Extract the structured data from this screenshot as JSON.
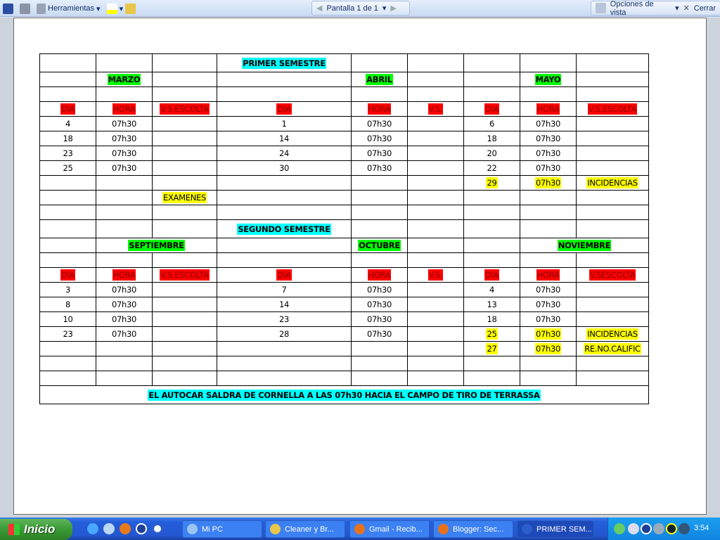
{
  "toolbar": {
    "tools_label": "Herramientas",
    "page_indicator": "Pantalla 1 de 1",
    "view_options_label": "Opciones de vista",
    "close_label": "Cerrar"
  },
  "table": {
    "rows": [
      [
        {
          "t": ""
        },
        {
          "t": ""
        },
        {
          "t": ""
        },
        {
          "t": "PRIMER SEMESTRE",
          "c": "cyan"
        },
        {
          "t": ""
        },
        {
          "t": ""
        },
        {
          "t": ""
        },
        {
          "t": ""
        },
        {
          "t": ""
        }
      ],
      [
        {
          "t": ""
        },
        {
          "t": "MARZO",
          "c": "green"
        },
        {
          "t": ""
        },
        {
          "t": ""
        },
        {
          "t": "ABRIL",
          "c": "green"
        },
        {
          "t": ""
        },
        {
          "t": ""
        },
        {
          "t": "MAYO",
          "c": "green"
        },
        {
          "t": ""
        }
      ],
      [
        {
          "t": ""
        },
        {
          "t": ""
        },
        {
          "t": ""
        },
        {
          "t": ""
        },
        {
          "t": ""
        },
        {
          "t": ""
        },
        {
          "t": ""
        },
        {
          "t": ""
        },
        {
          "t": ""
        }
      ],
      [
        {
          "t": "DIA",
          "c": "red"
        },
        {
          "t": "HORA",
          "c": "red"
        },
        {
          "t": "V.S.ESCOLTA",
          "c": "red"
        },
        {
          "t": "DIA",
          "c": "red"
        },
        {
          "t": "HORA",
          "c": "red"
        },
        {
          "t": "V.S.",
          "c": "red"
        },
        {
          "t": "DIA",
          "c": "red"
        },
        {
          "t": "HORA",
          "c": "red"
        },
        {
          "t": "V.S.ESCOLTA",
          "c": "red"
        }
      ],
      [
        {
          "t": "4"
        },
        {
          "t": "07h30"
        },
        {
          "t": ""
        },
        {
          "t": "1"
        },
        {
          "t": "07h30"
        },
        {
          "t": ""
        },
        {
          "t": "6"
        },
        {
          "t": "07h30"
        },
        {
          "t": ""
        }
      ],
      [
        {
          "t": "18"
        },
        {
          "t": "07h30"
        },
        {
          "t": ""
        },
        {
          "t": "14"
        },
        {
          "t": "07h30"
        },
        {
          "t": ""
        },
        {
          "t": "18"
        },
        {
          "t": "07h30"
        },
        {
          "t": ""
        }
      ],
      [
        {
          "t": "23"
        },
        {
          "t": "07h30"
        },
        {
          "t": ""
        },
        {
          "t": "24"
        },
        {
          "t": "07h30"
        },
        {
          "t": ""
        },
        {
          "t": "20"
        },
        {
          "t": "07h30"
        },
        {
          "t": ""
        }
      ],
      [
        {
          "t": "25"
        },
        {
          "t": "07h30"
        },
        {
          "t": ""
        },
        {
          "t": "30"
        },
        {
          "t": "07h30"
        },
        {
          "t": ""
        },
        {
          "t": "22"
        },
        {
          "t": "07h30"
        },
        {
          "t": ""
        }
      ],
      [
        {
          "t": ""
        },
        {
          "t": ""
        },
        {
          "t": ""
        },
        {
          "t": ""
        },
        {
          "t": ""
        },
        {
          "t": ""
        },
        {
          "t": "29",
          "c": "yellow"
        },
        {
          "t": "07h30",
          "c": "yellow"
        },
        {
          "t": "INCIDENCIAS",
          "c": "yellow"
        }
      ],
      [
        {
          "t": ""
        },
        {
          "t": ""
        },
        {
          "t": "EXAMENES",
          "c": "yellow"
        },
        {
          "t": ""
        },
        {
          "t": ""
        },
        {
          "t": ""
        },
        {
          "t": ""
        },
        {
          "t": ""
        },
        {
          "t": ""
        }
      ],
      [
        {
          "t": ""
        },
        {
          "t": ""
        },
        {
          "t": ""
        },
        {
          "t": ""
        },
        {
          "t": ""
        },
        {
          "t": ""
        },
        {
          "t": ""
        },
        {
          "t": ""
        },
        {
          "t": ""
        }
      ],
      [
        {
          "t": ""
        },
        {
          "t": ""
        },
        {
          "t": ""
        },
        {
          "t": "SEGUNDO SEMESTRE",
          "c": "cyan"
        },
        {
          "t": ""
        },
        {
          "t": ""
        },
        {
          "t": ""
        },
        {
          "t": ""
        },
        {
          "t": ""
        }
      ],
      [
        {
          "t": ""
        },
        {
          "t": "SEPTIEMBRE",
          "c": "green",
          "s": 2
        },
        {
          "t": ""
        },
        {
          "t": "OCTUBRE",
          "c": "green"
        },
        {
          "t": ""
        },
        {
          "t": ""
        },
        {
          "t": "NOVIEMBRE",
          "c": "green",
          "s": 2
        }
      ],
      [
        {
          "t": ""
        },
        {
          "t": ""
        },
        {
          "t": ""
        },
        {
          "t": ""
        },
        {
          "t": ""
        },
        {
          "t": ""
        },
        {
          "t": ""
        },
        {
          "t": ""
        },
        {
          "t": ""
        }
      ],
      [
        {
          "t": "DIA",
          "c": "red"
        },
        {
          "t": "HORA",
          "c": "red"
        },
        {
          "t": "V.S.ESCOLTA",
          "c": "red"
        },
        {
          "t": "DIA",
          "c": "red"
        },
        {
          "t": "HORA",
          "c": "red"
        },
        {
          "t": "V.S.",
          "c": "red"
        },
        {
          "t": "DIA",
          "c": "red"
        },
        {
          "t": "HORA",
          "c": "red"
        },
        {
          "t": "V.SESCOLTA",
          "c": "red"
        }
      ],
      [
        {
          "t": "3"
        },
        {
          "t": "07h30"
        },
        {
          "t": ""
        },
        {
          "t": "7"
        },
        {
          "t": "07h30"
        },
        {
          "t": ""
        },
        {
          "t": "4"
        },
        {
          "t": "07h30"
        },
        {
          "t": ""
        }
      ],
      [
        {
          "t": "8"
        },
        {
          "t": "07h30"
        },
        {
          "t": ""
        },
        {
          "t": "14"
        },
        {
          "t": "07h30"
        },
        {
          "t": ""
        },
        {
          "t": "13"
        },
        {
          "t": "07h30"
        },
        {
          "t": ""
        }
      ],
      [
        {
          "t": "10"
        },
        {
          "t": "07h30"
        },
        {
          "t": ""
        },
        {
          "t": "23"
        },
        {
          "t": "07h30"
        },
        {
          "t": ""
        },
        {
          "t": "18"
        },
        {
          "t": "07h30"
        },
        {
          "t": ""
        }
      ],
      [
        {
          "t": "23"
        },
        {
          "t": "07h30"
        },
        {
          "t": ""
        },
        {
          "t": "28"
        },
        {
          "t": "07h30"
        },
        {
          "t": ""
        },
        {
          "t": "25",
          "c": "yellow"
        },
        {
          "t": "07h30",
          "c": "yellow"
        },
        {
          "t": "INCIDENCIAS",
          "c": "yellow"
        }
      ],
      [
        {
          "t": ""
        },
        {
          "t": ""
        },
        {
          "t": ""
        },
        {
          "t": ""
        },
        {
          "t": ""
        },
        {
          "t": ""
        },
        {
          "t": "27",
          "c": "yellow"
        },
        {
          "t": "07h30",
          "c": "yellow"
        },
        {
          "t": "RE.NO.CALIFIC",
          "c": "yellow"
        }
      ],
      [
        {
          "t": ""
        },
        {
          "t": ""
        },
        {
          "t": ""
        },
        {
          "t": ""
        },
        {
          "t": ""
        },
        {
          "t": ""
        },
        {
          "t": ""
        },
        {
          "t": ""
        },
        {
          "t": ""
        }
      ],
      [
        {
          "t": ""
        },
        {
          "t": ""
        },
        {
          "t": ""
        },
        {
          "t": ""
        },
        {
          "t": ""
        },
        {
          "t": ""
        },
        {
          "t": ""
        },
        {
          "t": ""
        },
        {
          "t": ""
        }
      ],
      [
        {
          "t": "EL AUTOCAR SALDRA DE CORNELLA A LAS 07h30 HACIA EL CAMPO DE TIRO DE TERRASSA",
          "c": "cyan",
          "s": 9
        }
      ]
    ]
  },
  "taskbar": {
    "start_label": "Inicio",
    "tasks": [
      "Mi PC",
      "Cleaner y Br...",
      "Gmail - Recib...",
      "Blogger: Sec...",
      "PRIMER SEM..."
    ],
    "clock": "3:54"
  },
  "colors": {
    "cyan": "#00ffff",
    "green": "#00ff00",
    "red": "#ff0000",
    "yellow": "#ffff00"
  }
}
